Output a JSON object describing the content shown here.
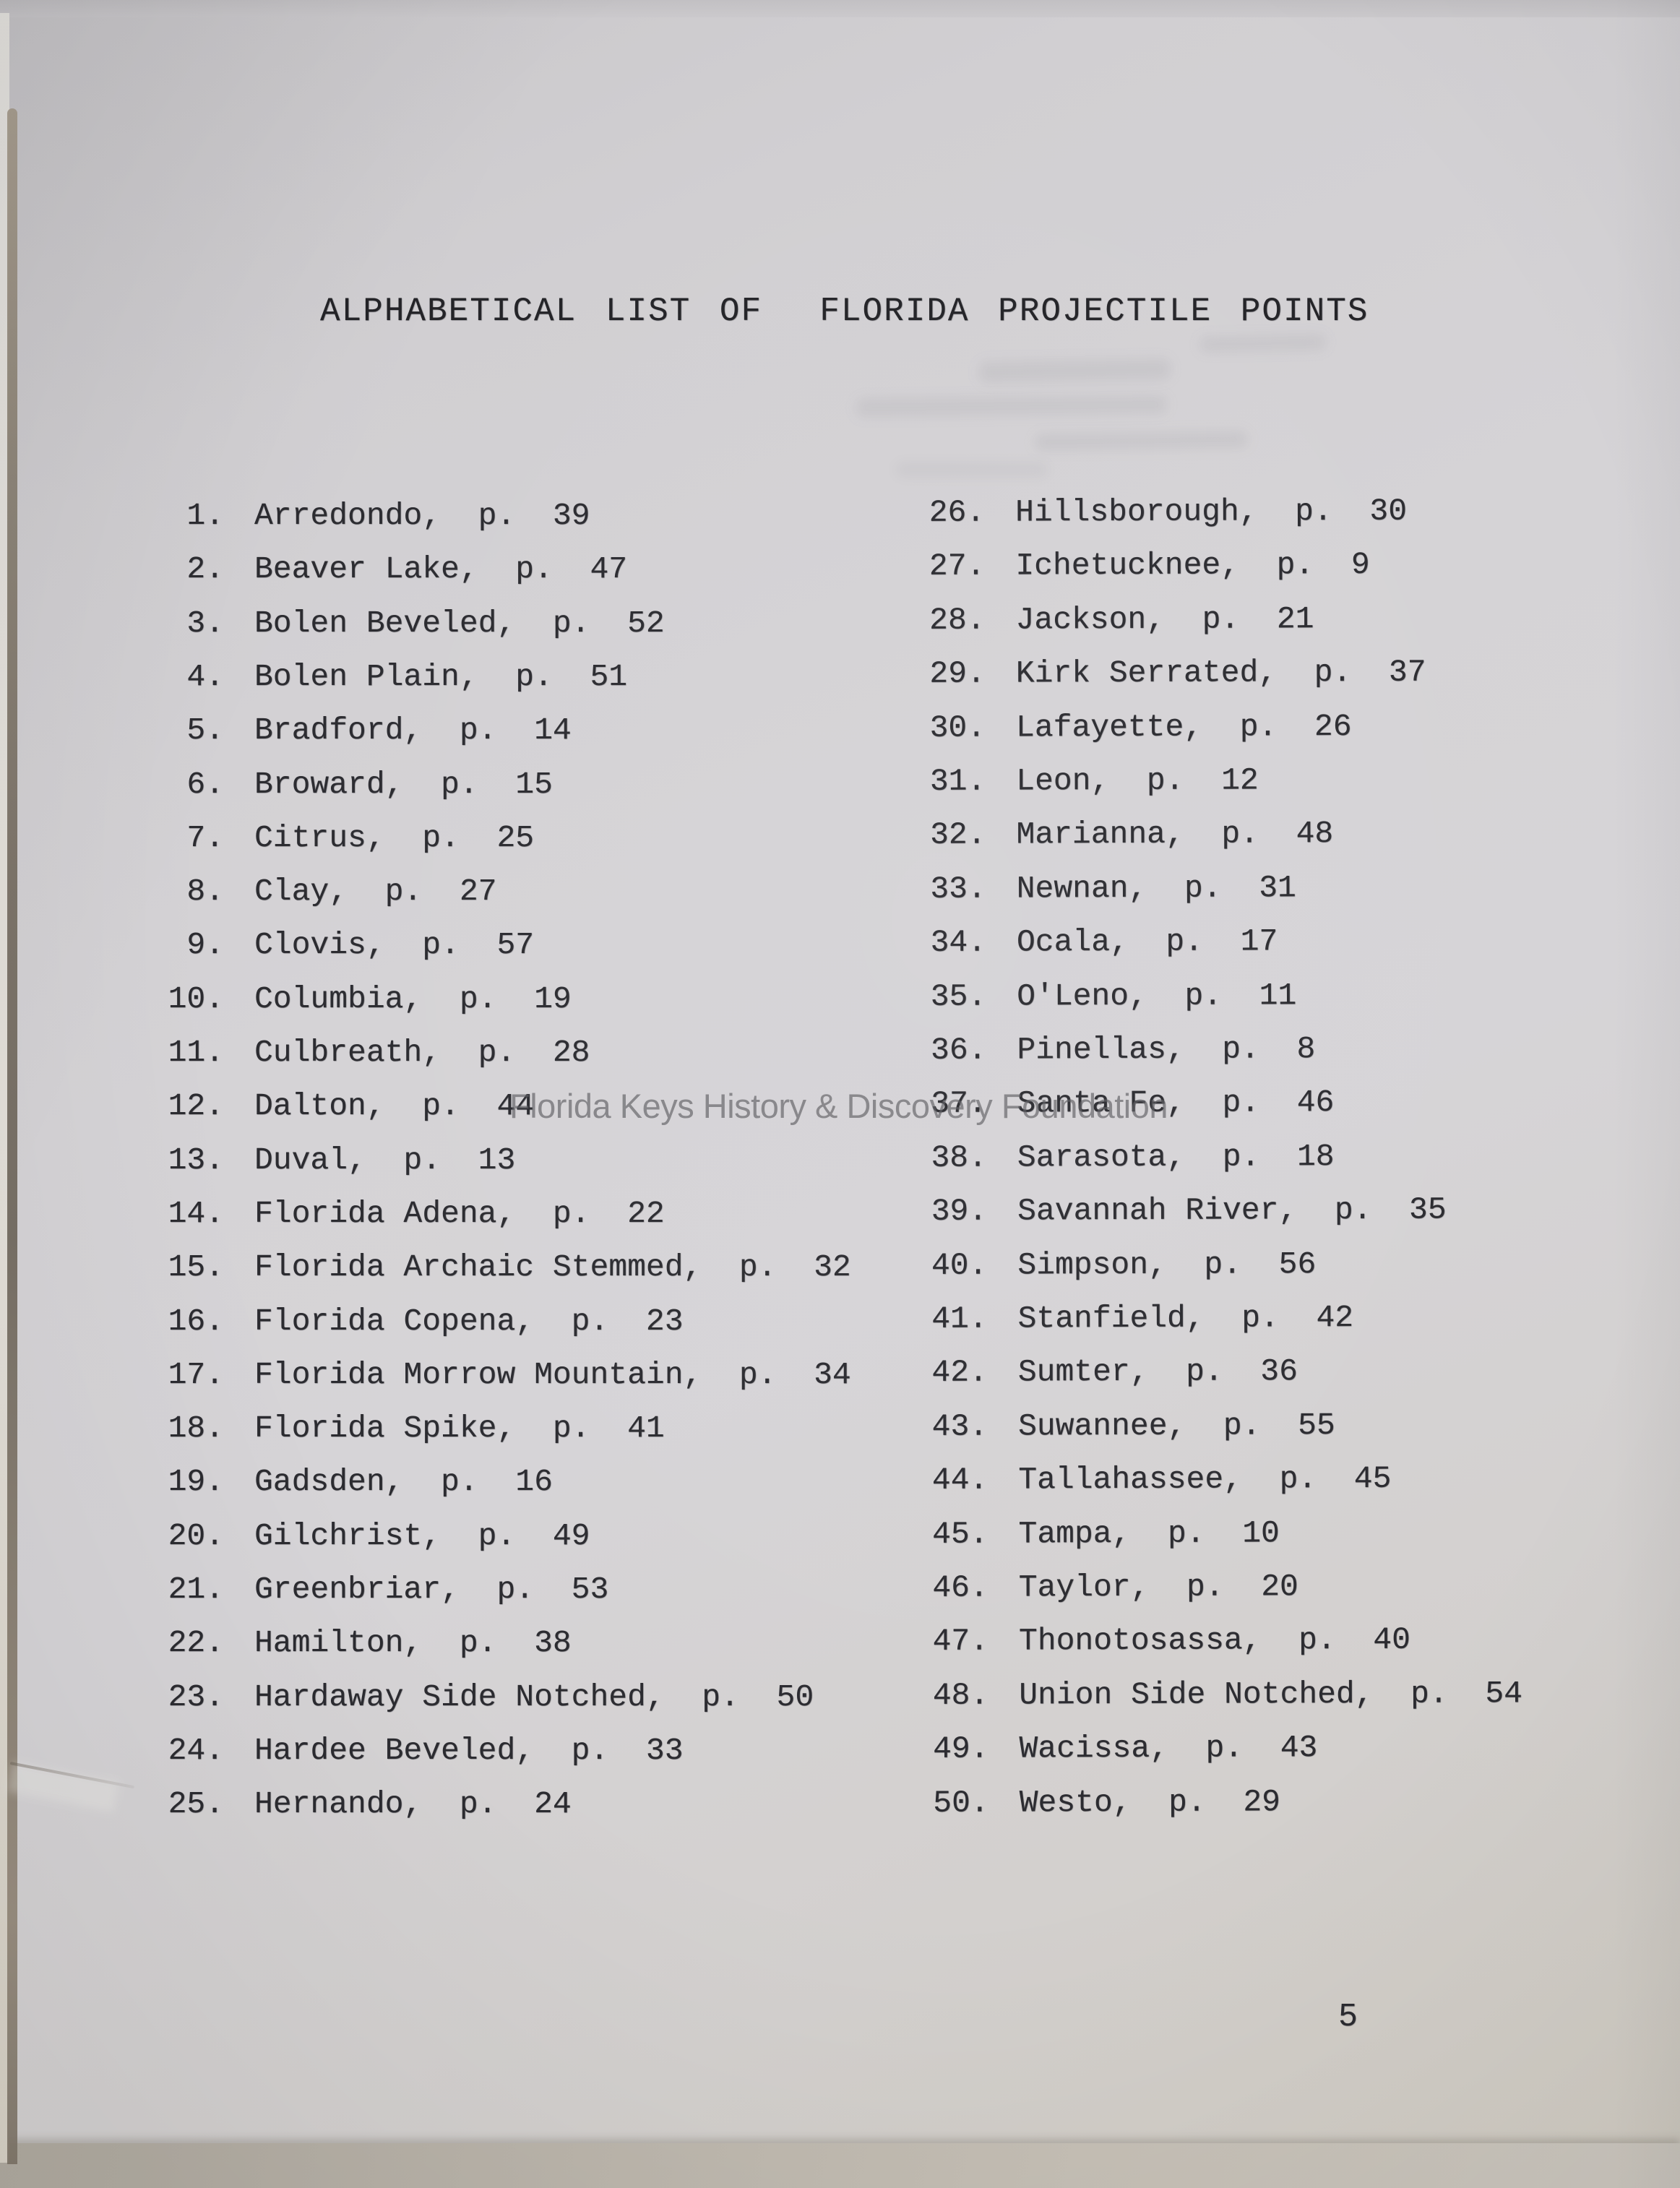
{
  "document": {
    "title": "ALPHABETICAL LIST OF  FLORIDA PROJECTILE POINTS",
    "watermark": "Florida Keys History & Discovery Foundation",
    "page_number": "5",
    "page_label_prefix": "p.",
    "columns": {
      "left": [
        {
          "num": "1",
          "name": "Arredondo",
          "page": "39"
        },
        {
          "num": "2",
          "name": "Beaver Lake",
          "page": "47"
        },
        {
          "num": "3",
          "name": "Bolen Beveled",
          "page": "52"
        },
        {
          "num": "4",
          "name": "Bolen Plain",
          "page": "51"
        },
        {
          "num": "5",
          "name": "Bradford",
          "page": "14"
        },
        {
          "num": "6",
          "name": "Broward",
          "page": "15"
        },
        {
          "num": "7",
          "name": "Citrus",
          "page": "25"
        },
        {
          "num": "8",
          "name": "Clay",
          "page": "27"
        },
        {
          "num": "9",
          "name": "Clovis",
          "page": "57"
        },
        {
          "num": "10",
          "name": "Columbia",
          "page": "19"
        },
        {
          "num": "11",
          "name": "Culbreath",
          "page": "28"
        },
        {
          "num": "12",
          "name": "Dalton",
          "page": "44"
        },
        {
          "num": "13",
          "name": "Duval",
          "page": "13"
        },
        {
          "num": "14",
          "name": "Florida Adena",
          "page": "22"
        },
        {
          "num": "15",
          "name": "Florida Archaic Stemmed",
          "page": "32"
        },
        {
          "num": "16",
          "name": "Florida Copena",
          "page": "23"
        },
        {
          "num": "17",
          "name": "Florida Morrow Mountain",
          "page": "34"
        },
        {
          "num": "18",
          "name": "Florida Spike",
          "page": "41"
        },
        {
          "num": "19",
          "name": "Gadsden",
          "page": "16"
        },
        {
          "num": "20",
          "name": "Gilchrist",
          "page": "49"
        },
        {
          "num": "21",
          "name": "Greenbriar",
          "page": "53"
        },
        {
          "num": "22",
          "name": "Hamilton",
          "page": "38"
        },
        {
          "num": "23",
          "name": "Hardaway Side Notched",
          "page": "50"
        },
        {
          "num": "24",
          "name": "Hardee Beveled",
          "page": "33"
        },
        {
          "num": "25",
          "name": "Hernando",
          "page": "24"
        }
      ],
      "right": [
        {
          "num": "26",
          "name": "Hillsborough",
          "page": "30"
        },
        {
          "num": "27",
          "name": "Ichetucknee",
          "page": "9"
        },
        {
          "num": "28",
          "name": "Jackson",
          "page": "21"
        },
        {
          "num": "29",
          "name": "Kirk Serrated",
          "page": "37"
        },
        {
          "num": "30",
          "name": "Lafayette",
          "page": "26"
        },
        {
          "num": "31",
          "name": "Leon",
          "page": "12"
        },
        {
          "num": "32",
          "name": "Marianna",
          "page": "48"
        },
        {
          "num": "33",
          "name": "Newnan",
          "page": "31"
        },
        {
          "num": "34",
          "name": "Ocala",
          "page": "17"
        },
        {
          "num": "35",
          "name": "O'Leno",
          "page": "11"
        },
        {
          "num": "36",
          "name": "Pinellas",
          "page": "8"
        },
        {
          "num": "37",
          "name": "Santa Fe",
          "page": "46"
        },
        {
          "num": "38",
          "name": "Sarasota",
          "page": "18"
        },
        {
          "num": "39",
          "name": "Savannah River",
          "page": "35"
        },
        {
          "num": "40",
          "name": "Simpson",
          "page": "56"
        },
        {
          "num": "41",
          "name": "Stanfield",
          "page": "42"
        },
        {
          "num": "42",
          "name": "Sumter",
          "page": "36"
        },
        {
          "num": "43",
          "name": "Suwannee",
          "page": "55"
        },
        {
          "num": "44",
          "name": "Tallahassee",
          "page": "45"
        },
        {
          "num": "45",
          "name": "Tampa",
          "page": "10"
        },
        {
          "num": "46",
          "name": "Taylor",
          "page": "20"
        },
        {
          "num": "47",
          "name": "Thonotosassa",
          "page": "40"
        },
        {
          "num": "48",
          "name": "Union Side Notched",
          "page": "54"
        },
        {
          "num": "49",
          "name": "Wacissa",
          "page": "43"
        },
        {
          "num": "50",
          "name": "Westo",
          "page": "29"
        }
      ]
    }
  },
  "colors": {
    "paper": "#d4d2d5",
    "ink": "#2b2b30",
    "watermark_gray": "#5d5d61",
    "page_edge_dark": "#6f675c",
    "bottom_shadow": "#b5afa5"
  }
}
